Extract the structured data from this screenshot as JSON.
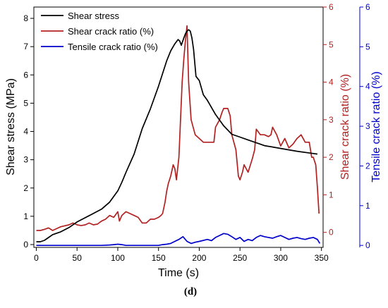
{
  "chart_data": {
    "type": "line",
    "panel_label": "(d)",
    "xlabel": "Time (s)",
    "xlim": [
      -3,
      352
    ],
    "xticks": [
      0,
      50,
      100,
      150,
      200,
      250,
      300,
      350
    ],
    "axes": {
      "left": {
        "label": "Shear stress (MPa)",
        "ylim": [
          -0.1,
          8.4
        ],
        "ticks": [
          0,
          1,
          2,
          3,
          4,
          5,
          6,
          7,
          8
        ],
        "color": "#000000"
      },
      "right1": {
        "label": "Shear crack ratio (%)",
        "ylim": [
          -0.4,
          6
        ],
        "ticks": [
          0,
          1,
          2,
          3,
          4,
          5,
          6
        ],
        "color": "#b22222"
      },
      "right2": {
        "label": "Tensile crack ratio (%)",
        "ylim": [
          -0.05,
          6
        ],
        "ticks": [
          0,
          1,
          2,
          3,
          4,
          5,
          6
        ],
        "color": "#0000cc"
      }
    },
    "legend": {
      "placement": "top-left"
    },
    "series": [
      {
        "name": "Shear stress",
        "axis": "left",
        "color": "#000000",
        "x": [
          0,
          5,
          10,
          15,
          20,
          25,
          30,
          40,
          50,
          60,
          70,
          80,
          90,
          95,
          100,
          105,
          110,
          120,
          130,
          140,
          150,
          160,
          165,
          170,
          174,
          176,
          178,
          181,
          183,
          185,
          187,
          189,
          191,
          193,
          196,
          200,
          205,
          210,
          220,
          230,
          240,
          250,
          260,
          270,
          280,
          300,
          320,
          340,
          345
        ],
        "y": [
          0.1,
          0.1,
          0.15,
          0.25,
          0.35,
          0.4,
          0.45,
          0.6,
          0.8,
          0.95,
          1.1,
          1.25,
          1.5,
          1.7,
          1.9,
          2.2,
          2.55,
          3.2,
          4.1,
          4.8,
          5.6,
          6.5,
          6.85,
          7.1,
          7.25,
          7.2,
          7.05,
          7.3,
          7.45,
          7.55,
          7.6,
          7.55,
          7.3,
          6.9,
          5.95,
          5.8,
          5.3,
          5.1,
          4.6,
          4.2,
          3.9,
          3.8,
          3.7,
          3.6,
          3.5,
          3.4,
          3.3,
          3.22,
          3.2
        ]
      },
      {
        "name": "Shear crack ratio (%)",
        "axis": "right1",
        "color": "#b22222",
        "x": [
          0,
          5,
          10,
          15,
          20,
          25,
          30,
          40,
          45,
          50,
          55,
          60,
          65,
          70,
          75,
          80,
          85,
          90,
          95,
          100,
          102,
          105,
          110,
          115,
          120,
          125,
          130,
          135,
          140,
          145,
          150,
          153,
          155,
          158,
          160,
          162,
          165,
          168,
          170,
          172,
          175,
          177,
          179,
          181,
          183,
          185,
          187,
          190,
          195,
          200,
          205,
          210,
          215,
          218,
          220,
          225,
          228,
          230,
          235,
          238,
          240,
          245,
          248,
          250,
          253,
          255,
          260,
          265,
          268,
          270,
          275,
          280,
          285,
          288,
          290,
          295,
          300,
          305,
          310,
          315,
          320,
          325,
          330,
          335,
          338,
          340,
          343,
          345,
          347
        ],
        "y": [
          0.05,
          0.05,
          0.08,
          0.12,
          0.05,
          0.1,
          0.15,
          0.2,
          0.25,
          0.2,
          0.18,
          0.2,
          0.25,
          0.2,
          0.22,
          0.3,
          0.35,
          0.45,
          0.4,
          0.55,
          0.3,
          0.45,
          0.55,
          0.5,
          0.45,
          0.4,
          0.25,
          0.25,
          0.35,
          0.35,
          0.4,
          0.45,
          0.5,
          0.8,
          1.1,
          1.3,
          1.5,
          1.8,
          1.7,
          1.4,
          2.0,
          3.0,
          4.0,
          4.6,
          5.1,
          5.5,
          4.0,
          3.0,
          2.6,
          2.5,
          2.4,
          2.4,
          2.4,
          2.4,
          2.8,
          3.0,
          3.2,
          3.3,
          3.3,
          3.1,
          2.6,
          2.2,
          1.5,
          1.4,
          1.6,
          1.8,
          1.6,
          1.95,
          2.2,
          2.75,
          2.6,
          2.6,
          2.55,
          2.6,
          2.8,
          2.6,
          2.3,
          2.5,
          2.25,
          2.35,
          2.5,
          2.6,
          2.4,
          2.4,
          2.0,
          2.0,
          1.8,
          1.2,
          0.5
        ]
      },
      {
        "name": "Tensile crack ratio (%)",
        "axis": "right2",
        "color": "#0000cc",
        "x": [
          0,
          20,
          40,
          60,
          80,
          90,
          95,
          100,
          105,
          110,
          120,
          130,
          140,
          150,
          155,
          160,
          165,
          170,
          175,
          180,
          185,
          190,
          195,
          200,
          210,
          215,
          220,
          225,
          230,
          235,
          240,
          245,
          250,
          255,
          260,
          265,
          270,
          275,
          280,
          285,
          290,
          295,
          300,
          305,
          310,
          315,
          320,
          325,
          330,
          335,
          340,
          345,
          348
        ],
        "y": [
          0,
          0,
          0,
          0,
          0,
          0.01,
          0.02,
          0.03,
          0.02,
          0.0,
          0.0,
          0.0,
          0.0,
          0.0,
          0.02,
          0.03,
          0.05,
          0.1,
          0.15,
          0.22,
          0.1,
          0.05,
          0.08,
          0.1,
          0.15,
          0.12,
          0.2,
          0.25,
          0.3,
          0.28,
          0.22,
          0.15,
          0.2,
          0.1,
          0.15,
          0.12,
          0.2,
          0.25,
          0.22,
          0.2,
          0.18,
          0.22,
          0.25,
          0.2,
          0.15,
          0.18,
          0.2,
          0.17,
          0.15,
          0.18,
          0.2,
          0.15,
          0.05
        ]
      }
    ]
  }
}
